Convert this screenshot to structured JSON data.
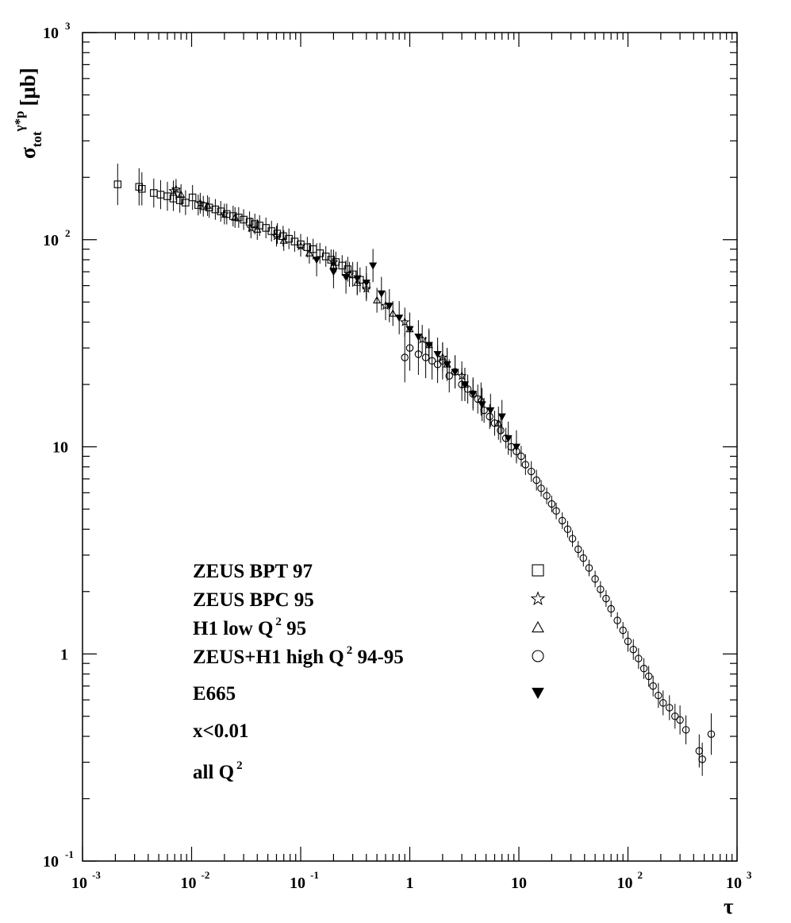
{
  "chart_data": {
    "type": "scatter",
    "xscale": "log",
    "yscale": "log",
    "xlim": [
      0.001,
      1000
    ],
    "ylim": [
      0.1,
      1000
    ],
    "grid": false,
    "legend_position": "bottom-left",
    "xlabel": "τ",
    "ylabel": {
      "base": "σ",
      "sub": "tot",
      "sup": "γ*p",
      "unit": "[μb]"
    },
    "x_ticks": [
      {
        "mantissa": "10",
        "exp": "-3"
      },
      {
        "mantissa": "10",
        "exp": "-2"
      },
      {
        "mantissa": "10",
        "exp": "-1"
      },
      {
        "mantissa": "1",
        "exp": ""
      },
      {
        "mantissa": "10",
        "exp": ""
      },
      {
        "mantissa": "10",
        "exp": "2"
      },
      {
        "mantissa": "10",
        "exp": "3"
      }
    ],
    "y_ticks": [
      {
        "mantissa": "10",
        "exp": "-1"
      },
      {
        "mantissa": "1",
        "exp": ""
      },
      {
        "mantissa": "10",
        "exp": ""
      },
      {
        "mantissa": "10",
        "exp": "2"
      },
      {
        "mantissa": "10",
        "exp": "3"
      }
    ],
    "legend": [
      {
        "label": "ZEUS BPT 97",
        "sup": "",
        "after": "",
        "marker": "open-square"
      },
      {
        "label": "ZEUS BPC 95",
        "sup": "",
        "after": "",
        "marker": "open-star"
      },
      {
        "label": "H1 low Q",
        "sup": "2",
        "after": " 95",
        "marker": "open-triangle"
      },
      {
        "label": "ZEUS+H1 high Q",
        "sup": "2",
        "after": " 94-95",
        "marker": "open-circle"
      },
      {
        "label": "E665",
        "sup": "",
        "after": "",
        "marker": "filled-triangle-down"
      }
    ],
    "annotations": [
      {
        "label": "x<0.01",
        "sup": ""
      },
      {
        "label": "all Q",
        "sup": "2"
      }
    ],
    "series": [
      {
        "name": "ZEUS BPT 97",
        "marker": "open-square",
        "x": [
          0.0021,
          0.0033,
          0.0035,
          0.0045,
          0.0052,
          0.006,
          0.0068,
          0.0078,
          0.0088,
          0.0102,
          0.0115,
          0.0128,
          0.0145,
          0.0165,
          0.0185,
          0.021,
          0.024,
          0.027,
          0.03,
          0.034,
          0.038,
          0.042,
          0.048,
          0.054,
          0.061,
          0.069,
          0.078,
          0.088,
          0.1,
          0.115,
          0.13,
          0.15,
          0.17,
          0.19,
          0.21,
          0.24,
          0.27,
          0.3,
          0.35,
          0.4
        ],
        "y": [
          185,
          180,
          176,
          168,
          165,
          162,
          158,
          155,
          151,
          160,
          147,
          145,
          143,
          140,
          137,
          133,
          130,
          128,
          125,
          122,
          119,
          117,
          114,
          110,
          107,
          104,
          101,
          98,
          95,
          92,
          90,
          86,
          83,
          80,
          78,
          75,
          72,
          68,
          64,
          60
        ],
        "err": [
          0.1,
          0.09,
          0.08,
          0.07,
          0.07,
          0.07,
          0.06,
          0.06,
          0.06,
          0.06,
          0.05,
          0.05,
          0.05,
          0.05,
          0.05,
          0.05,
          0.05,
          0.05,
          0.05,
          0.05,
          0.05,
          0.05,
          0.05,
          0.05,
          0.05,
          0.05,
          0.05,
          0.05,
          0.05,
          0.05,
          0.05,
          0.05,
          0.05,
          0.05,
          0.05,
          0.05,
          0.06,
          0.06,
          0.06,
          0.06
        ]
      },
      {
        "name": "ZEUS BPC 95",
        "marker": "open-star",
        "x": [
          0.0068,
          0.0072,
          0.012,
          0.02,
          0.035,
          0.06,
          0.1,
          0.2,
          0.28,
          0.4,
          0.6,
          0.9,
          1.3,
          2.0,
          3.0
        ],
        "y": [
          172,
          175,
          150,
          133,
          114,
          104,
          93,
          78,
          68,
          58,
          48,
          40,
          33,
          27,
          22
        ],
        "err": [
          0.05,
          0.05,
          0.05,
          0.05,
          0.05,
          0.05,
          0.05,
          0.06,
          0.06,
          0.06,
          0.07,
          0.07,
          0.07,
          0.07,
          0.07
        ]
      },
      {
        "name": "H1 low Q2 95",
        "marker": "open-triangle",
        "x": [
          0.008,
          0.014,
          0.025,
          0.04,
          0.07,
          0.12,
          0.2,
          0.33,
          0.5,
          0.7,
          1.0,
          1.5,
          2.2,
          3.2,
          4.5,
          6.5
        ],
        "y": [
          165,
          146,
          128,
          112,
          99,
          86,
          75,
          62,
          51,
          44,
          37,
          31,
          25,
          20,
          17,
          13
        ],
        "err": [
          0.05,
          0.05,
          0.05,
          0.05,
          0.05,
          0.05,
          0.06,
          0.06,
          0.06,
          0.06,
          0.07,
          0.07,
          0.07,
          0.08,
          0.08,
          0.08
        ]
      },
      {
        "name": "ZEUS+H1 high Q2 94-95",
        "marker": "open-circle",
        "x": [
          0.9,
          1.0,
          1.2,
          1.4,
          1.6,
          1.8,
          2.0,
          2.3,
          2.6,
          3.0,
          3.4,
          3.8,
          4.2,
          4.8,
          5.4,
          6.0,
          6.8,
          7.6,
          8.5,
          9.5,
          10.5,
          11.5,
          13,
          14.5,
          16,
          18,
          20,
          22,
          25,
          28,
          31,
          35,
          39,
          44,
          50,
          56,
          63,
          70,
          80,
          90,
          100,
          112,
          125,
          140,
          155,
          170,
          190,
          210,
          240,
          270,
          300,
          340,
          450,
          480,
          580
        ],
        "y": [
          27,
          30,
          28,
          27,
          26,
          25,
          26,
          22,
          23,
          20,
          19,
          18,
          17,
          15,
          14,
          13,
          12,
          11,
          10,
          9.5,
          9,
          8.2,
          7.6,
          6.9,
          6.3,
          5.8,
          5.3,
          4.9,
          4.4,
          4.0,
          3.6,
          3.2,
          2.9,
          2.6,
          2.3,
          2.05,
          1.85,
          1.65,
          1.45,
          1.3,
          1.15,
          1.05,
          0.95,
          0.85,
          0.78,
          0.7,
          0.63,
          0.58,
          0.55,
          0.5,
          0.48,
          0.43,
          0.34,
          0.31,
          0.41
        ],
        "err": [
          0.12,
          0.11,
          0.1,
          0.1,
          0.09,
          0.09,
          0.09,
          0.08,
          0.08,
          0.08,
          0.07,
          0.07,
          0.07,
          0.06,
          0.06,
          0.06,
          0.06,
          0.05,
          0.05,
          0.05,
          0.05,
          0.05,
          0.05,
          0.05,
          0.04,
          0.04,
          0.04,
          0.04,
          0.04,
          0.04,
          0.04,
          0.04,
          0.04,
          0.04,
          0.04,
          0.04,
          0.04,
          0.04,
          0.04,
          0.04,
          0.05,
          0.05,
          0.05,
          0.05,
          0.05,
          0.05,
          0.06,
          0.06,
          0.06,
          0.06,
          0.07,
          0.07,
          0.08,
          0.08,
          0.1
        ]
      },
      {
        "name": "E665",
        "marker": "filled-triangle-down",
        "x": [
          0.14,
          0.2,
          0.26,
          0.33,
          0.4,
          0.46,
          0.55,
          0.65,
          0.8,
          1.0,
          1.2,
          1.5,
          1.8,
          2.2,
          2.6,
          3.2,
          3.8,
          4.6,
          5.5,
          7.0,
          8.0,
          9.5
        ],
        "y": [
          80,
          70,
          66,
          65,
          62,
          75,
          55,
          48,
          42,
          37,
          34,
          31,
          28,
          25,
          23,
          20,
          18,
          16,
          15,
          14,
          11,
          10
        ],
        "err": [
          0.08,
          0.08,
          0.08,
          0.08,
          0.08,
          0.08,
          0.08,
          0.08,
          0.08,
          0.08,
          0.08,
          0.08,
          0.08,
          0.08,
          0.08,
          0.08,
          0.08,
          0.08,
          0.08,
          0.08,
          0.08,
          0.08
        ]
      }
    ]
  }
}
